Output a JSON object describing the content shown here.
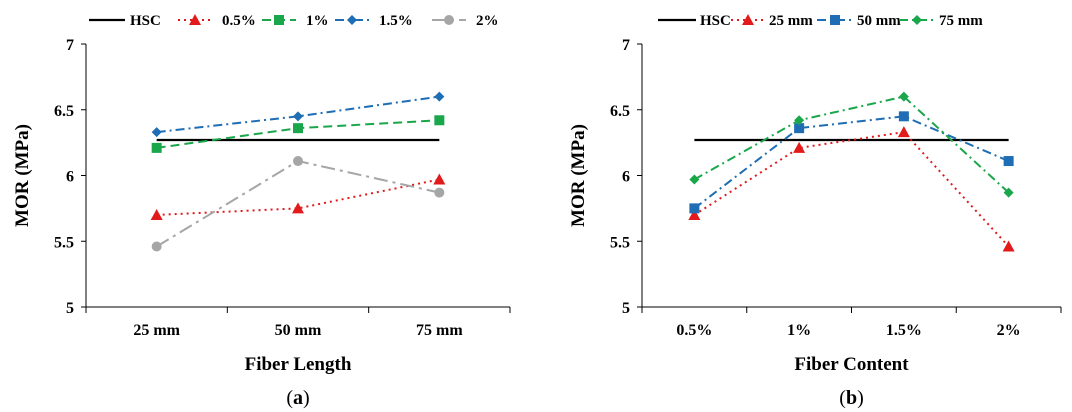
{
  "chart_data": [
    {
      "type": "line",
      "panel_label": "a",
      "xlabel": "Fiber Length",
      "ylabel": "MOR (MPa)",
      "ylim": [
        5,
        7
      ],
      "yticks": [
        "5",
        "5.5",
        "6",
        "6.5",
        "7"
      ],
      "categories": [
        "25 mm",
        "50 mm",
        "75 mm"
      ],
      "legend_position": "top",
      "series": [
        {
          "name": "HSC",
          "values": [
            6.27,
            6.27,
            6.27
          ],
          "color": "#000000",
          "dash": "solid",
          "marker": "none"
        },
        {
          "name": "0.5%",
          "values": [
            5.7,
            5.75,
            5.97
          ],
          "color": "#e31a1c",
          "dash": "dot",
          "marker": "triangle"
        },
        {
          "name": "1%",
          "values": [
            6.21,
            6.36,
            6.42
          ],
          "color": "#1aa64b",
          "dash": "dash",
          "marker": "square"
        },
        {
          "name": "1.5%",
          "values": [
            6.33,
            6.45,
            6.6
          ],
          "color": "#1f6db5",
          "dash": "dashdot",
          "marker": "diamond"
        },
        {
          "name": "2%",
          "values": [
            5.46,
            6.11,
            5.87
          ],
          "color": "#a6a6a6",
          "dash": "longdashdot",
          "marker": "circle"
        }
      ]
    },
    {
      "type": "line",
      "panel_label": "b",
      "xlabel": "Fiber Content",
      "ylabel": "MOR (MPa)",
      "ylim": [
        5,
        7
      ],
      "yticks": [
        "5",
        "5.5",
        "6",
        "6.5",
        "7"
      ],
      "categories": [
        "0.5%",
        "1%",
        "1.5%",
        "2%"
      ],
      "legend_position": "top",
      "series": [
        {
          "name": "HSC",
          "values": [
            6.27,
            6.27,
            6.27,
            6.27
          ],
          "color": "#000000",
          "dash": "solid",
          "marker": "none"
        },
        {
          "name": "25 mm",
          "values": [
            5.7,
            6.21,
            6.33,
            5.46
          ],
          "color": "#e31a1c",
          "dash": "dot",
          "marker": "triangle"
        },
        {
          "name": "50 mm",
          "values": [
            5.75,
            6.36,
            6.45,
            6.11
          ],
          "color": "#1f6db5",
          "dash": "dashdot",
          "marker": "square"
        },
        {
          "name": "75 mm",
          "values": [
            5.97,
            6.42,
            6.6,
            5.87
          ],
          "color": "#1aa64b",
          "dash": "dashdot",
          "marker": "diamond"
        }
      ]
    }
  ]
}
